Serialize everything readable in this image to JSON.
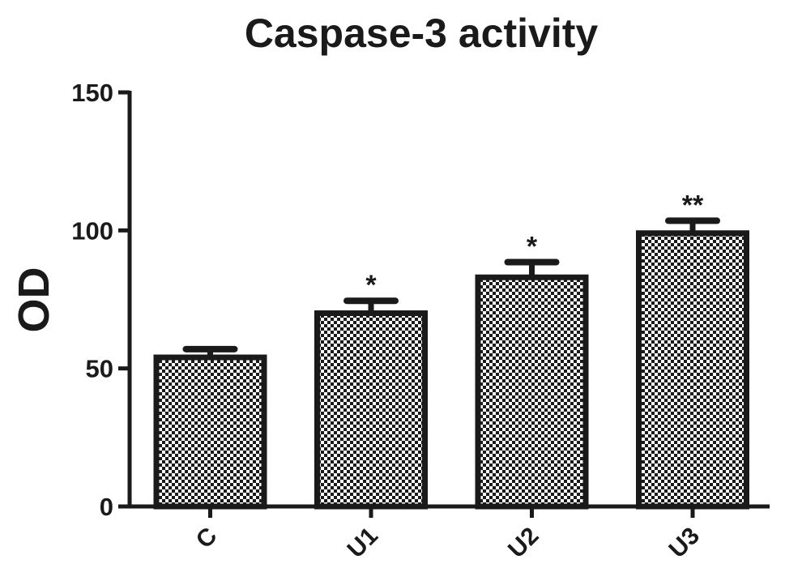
{
  "chart_data": {
    "type": "bar",
    "title": "Caspase-3 activity",
    "xlabel": "",
    "ylabel": "OD",
    "ylim": [
      0,
      150
    ],
    "yticks": [
      0,
      50,
      100,
      150
    ],
    "categories": [
      "C",
      "U1",
      "U2",
      "U3"
    ],
    "values": [
      54,
      70,
      83,
      99
    ],
    "errors": [
      3,
      4.5,
      5.5,
      4.5
    ],
    "annotations": [
      "",
      "*",
      "*",
      "**"
    ],
    "grid": false,
    "colors": {
      "ink": "#1a1a1a",
      "fill_light": "#ffffff"
    }
  }
}
